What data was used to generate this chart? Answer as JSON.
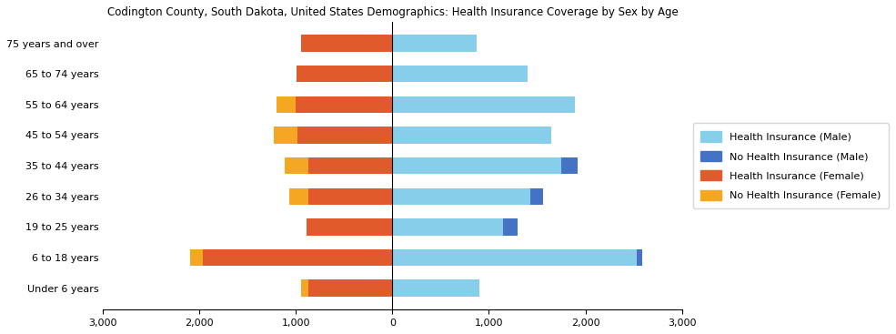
{
  "title": "Codington County, South Dakota, United States Demographics: Health Insurance Coverage by Sex by Age",
  "age_groups": [
    "Under 6 years",
    "6 to 18 years",
    "19 to 25 years",
    "26 to 34 years",
    "35 to 44 years",
    "45 to 54 years",
    "55 to 64 years",
    "65 to 74 years",
    "75 years and over"
  ],
  "health_ins_male": [
    900,
    2530,
    1150,
    1430,
    1750,
    1650,
    1890,
    1400,
    870
  ],
  "no_health_ins_male": [
    0,
    60,
    150,
    130,
    165,
    0,
    0,
    0,
    0
  ],
  "health_ins_female": [
    870,
    1960,
    890,
    870,
    870,
    980,
    1000,
    990,
    945
  ],
  "no_health_ins_female": [
    75,
    140,
    0,
    200,
    245,
    250,
    200,
    0,
    0
  ],
  "color_health_ins_male": "#87CEEB",
  "color_no_health_ins_male": "#4472C4",
  "color_health_ins_female": "#E05A2B",
  "color_no_health_ins_female": "#F5A623",
  "xlim": 3000,
  "xticks": [
    -3000,
    -2000,
    -1000,
    0,
    1000,
    2000,
    3000
  ],
  "xticklabels": [
    "3,000",
    "2,000",
    "1,000",
    "0",
    "1,000",
    "2,000",
    "3,000"
  ],
  "bar_height": 0.55,
  "title_fontsize": 8.5,
  "tick_fontsize": 8,
  "legend_fontsize": 8
}
